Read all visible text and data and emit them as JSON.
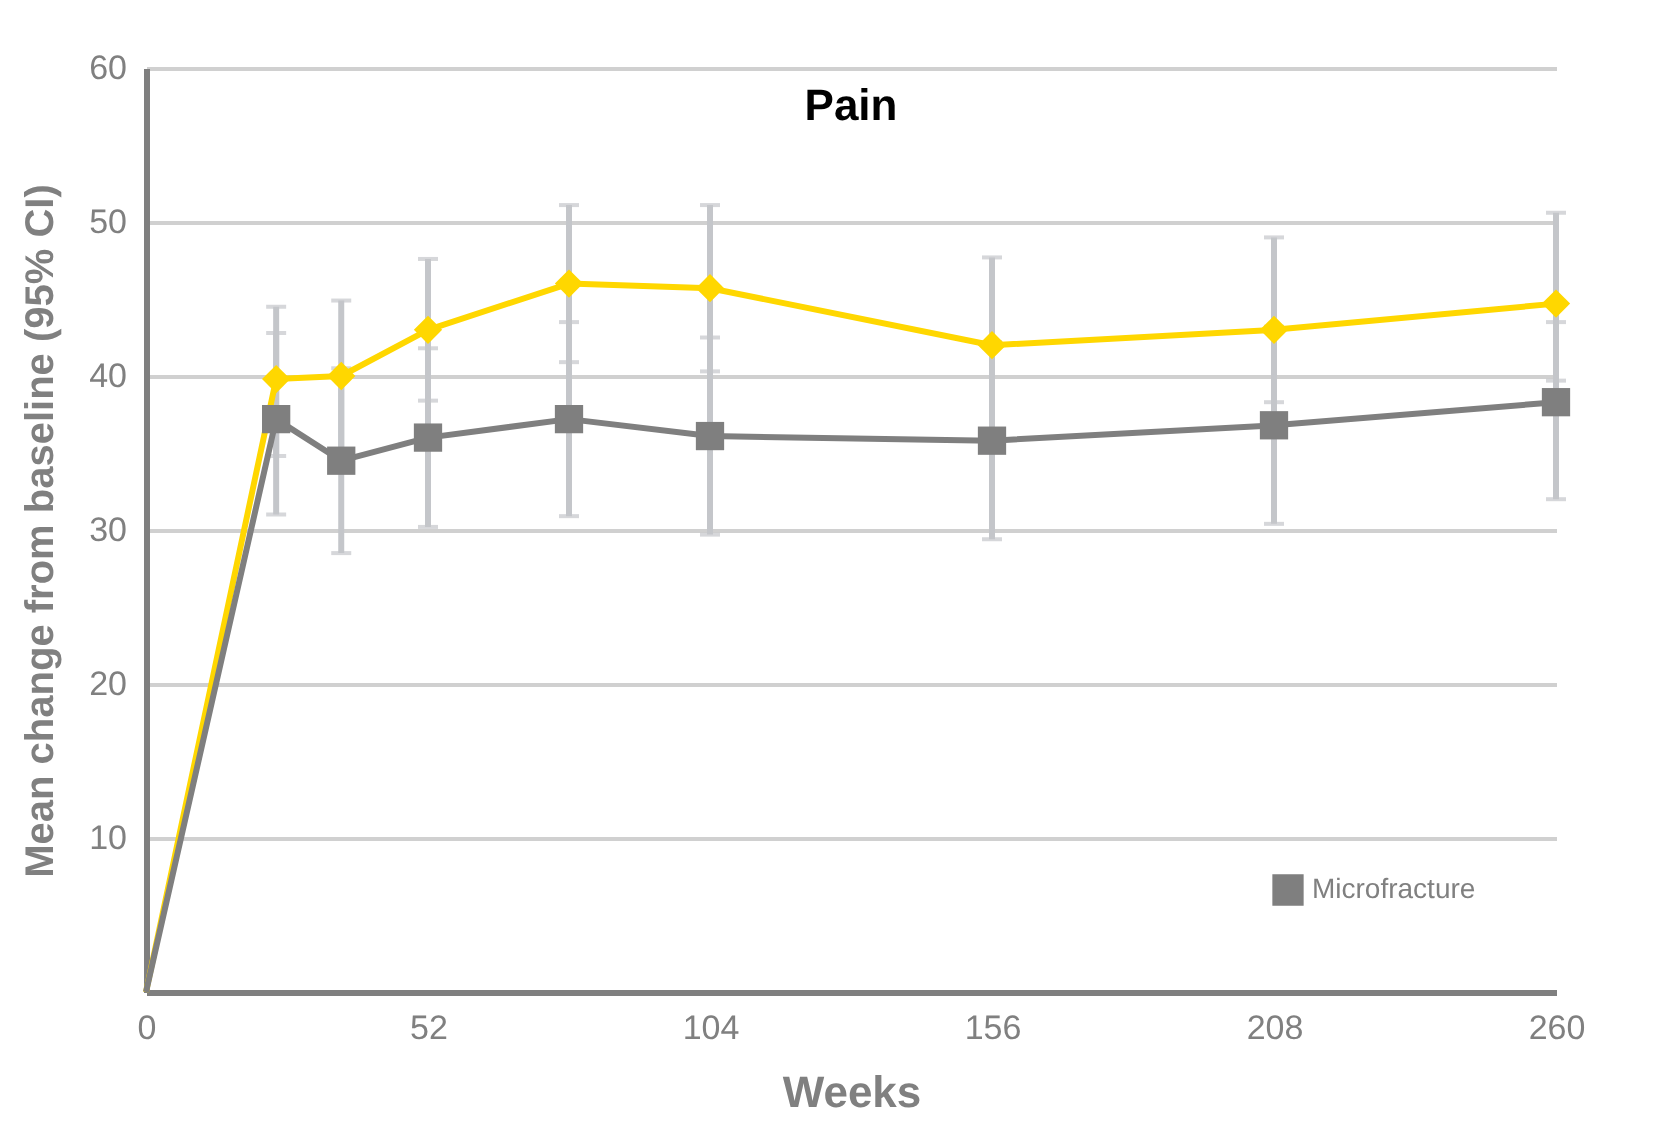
{
  "chart_data": {
    "type": "line",
    "title": "Pain",
    "xlabel": "Weeks",
    "ylabel": "Mean change from baseline (95% CI)",
    "x": [
      0,
      24,
      36,
      52,
      78,
      104,
      156,
      208,
      260
    ],
    "series": [
      {
        "color": "#ffd700",
        "marker": "diamond",
        "values": [
          0,
          39.8,
          40,
          43,
          46,
          45.7,
          42,
          43,
          44.7
        ],
        "errors": [
          null,
          [
            34.8,
            44.5
          ],
          [
            35.1,
            44.9
          ],
          [
            38.4,
            47.6
          ],
          [
            40.9,
            51.1
          ],
          [
            40.3,
            51.1
          ],
          [
            36.3,
            47.7
          ],
          [
            38.3,
            49
          ],
          [
            39.7,
            50.6
          ]
        ]
      },
      {
        "name": "Microfracture",
        "color": "#7f7f7f",
        "marker": "square",
        "values": [
          0,
          37.2,
          34.5,
          36,
          37.2,
          36.1,
          35.8,
          36.8,
          38.3
        ],
        "errors": [
          null,
          [
            31,
            42.8
          ],
          [
            28.5,
            40.5
          ],
          [
            30.2,
            41.8
          ],
          [
            30.9,
            43.5
          ],
          [
            29.7,
            42.5
          ],
          [
            29.4,
            42.2
          ],
          [
            30.4,
            43.2
          ],
          [
            32,
            43.5
          ]
        ]
      }
    ],
    "xlim": [
      0,
      260
    ],
    "xticks": [
      0,
      52,
      104,
      156,
      208,
      260
    ],
    "ylim": [
      0,
      60
    ],
    "yticks": [
      {
        "value": 0,
        "label": null
      },
      10,
      20,
      30,
      40,
      50,
      60
    ],
    "grid": "y",
    "legend": "bottom right"
  }
}
